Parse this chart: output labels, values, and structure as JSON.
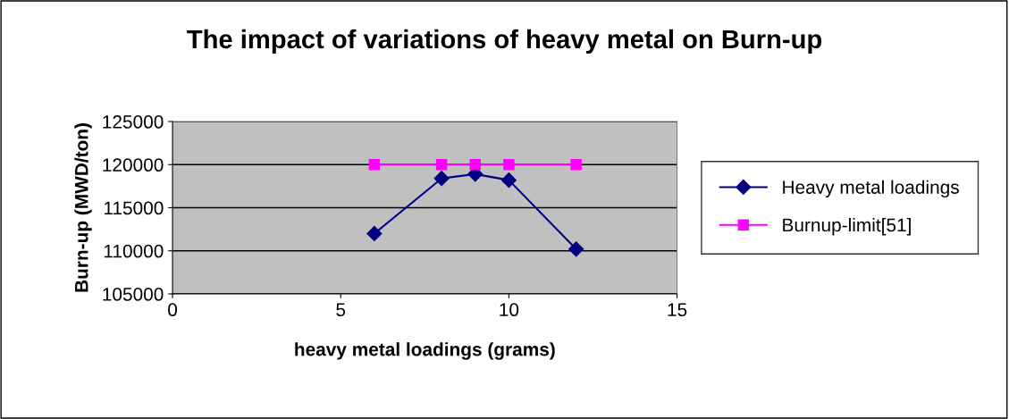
{
  "chart_data": {
    "type": "line",
    "title": "The impact of variations of heavy metal on Burn-up",
    "xlabel": "heavy metal loadings (grams)",
    "ylabel": "Burn-up (MWD/ton)",
    "x": [
      6,
      8,
      9,
      10,
      12
    ],
    "series": [
      {
        "name": "Heavy metal loadings",
        "color": "#000080",
        "values": [
          112000,
          118400,
          118900,
          118200,
          110200
        ],
        "marker": "diamond"
      },
      {
        "name": "Burnup-limit[51]",
        "color": "#ff00ff",
        "values": [
          120000,
          120000,
          120000,
          120000,
          120000
        ],
        "marker": "square"
      }
    ],
    "xlim": [
      0,
      15
    ],
    "xticks": [
      0,
      5,
      10,
      15
    ],
    "ylim": [
      105000,
      125000
    ],
    "yticks": [
      105000,
      110000,
      115000,
      120000,
      125000
    ],
    "grid": "y",
    "legend": "right",
    "line_style": "solid"
  }
}
